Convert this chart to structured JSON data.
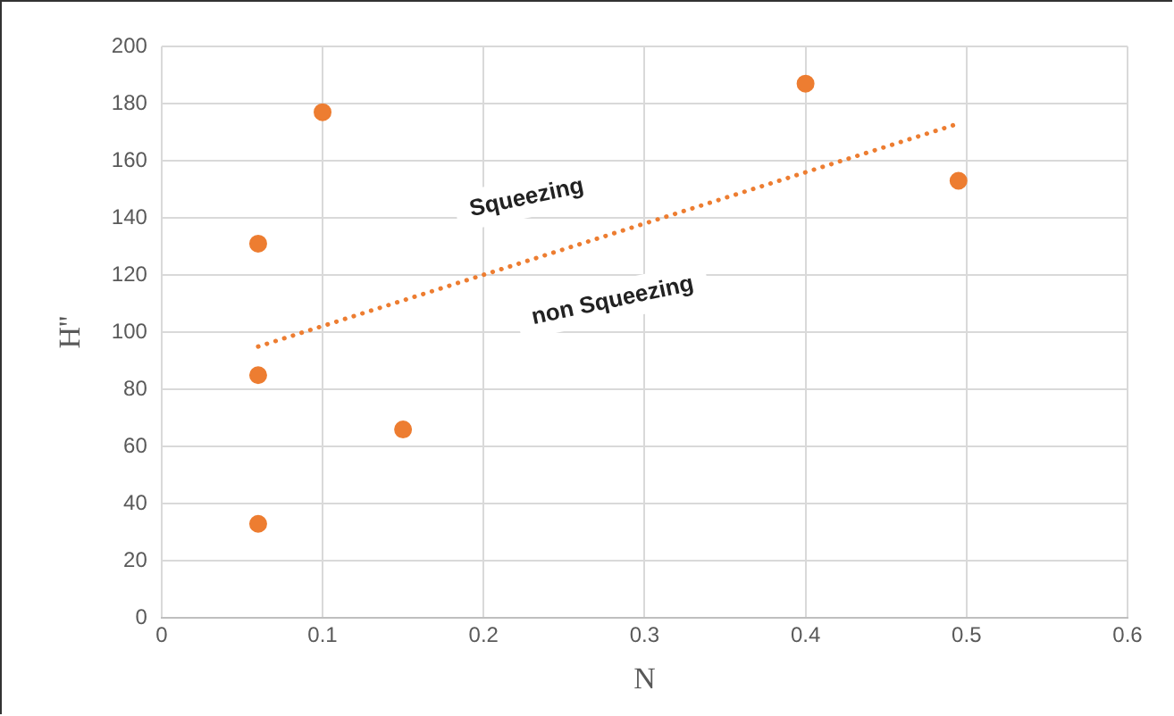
{
  "chart_data": {
    "type": "scatter",
    "xlabel": "N",
    "ylabel": "H''",
    "xlim": [
      0,
      0.6
    ],
    "xticks": [
      0,
      0.1,
      0.2,
      0.3,
      0.4,
      0.5,
      0.6
    ],
    "ylim": [
      0,
      200
    ],
    "yticks": [
      0,
      20,
      40,
      60,
      80,
      100,
      120,
      140,
      160,
      180,
      200
    ],
    "grid": true,
    "legend": false,
    "marker": "circle",
    "series": [
      {
        "type": "scatter",
        "color": "#ed7d31",
        "x": [
          0.06,
          0.06,
          0.06,
          0.1,
          0.15,
          0.4,
          0.495
        ],
        "values": [
          33,
          85,
          131,
          177,
          66,
          187,
          153
        ]
      },
      {
        "type": "line",
        "color": "#ed7d31",
        "line_style": "dotted",
        "marker": "none",
        "x": [
          0.06,
          0.495
        ],
        "values": [
          95,
          173
        ]
      }
    ],
    "annotations": [
      "Squeezing",
      "non Squeezing"
    ]
  }
}
